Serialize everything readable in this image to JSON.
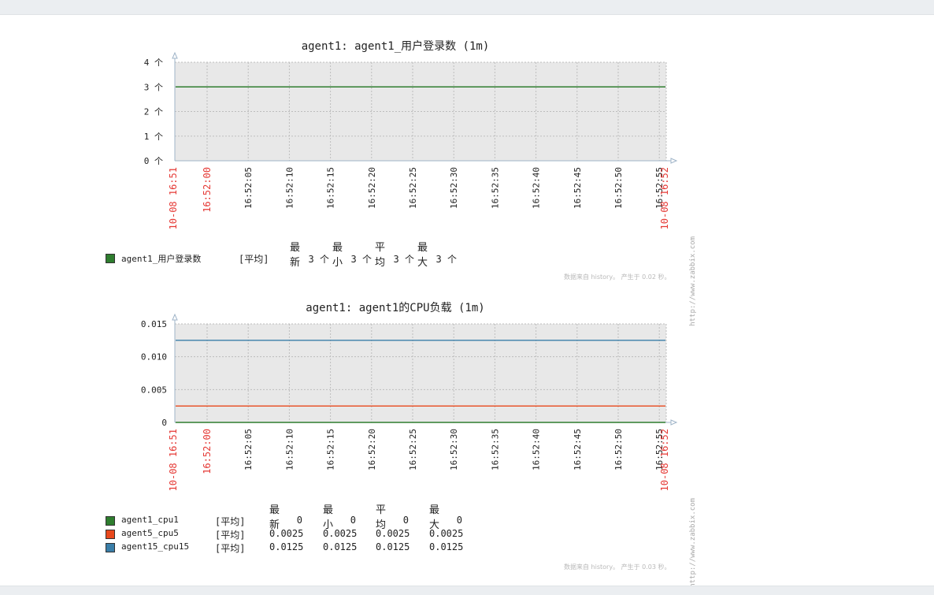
{
  "watermark": "http://www.zabbix.com",
  "chart_data": [
    {
      "type": "line",
      "title": "agent1: agent1_用户登录数 (1m)",
      "ylim": [
        0,
        4
      ],
      "y_ticks": [
        {
          "value": 0,
          "label": "0 个"
        },
        {
          "value": 1,
          "label": "1 个"
        },
        {
          "value": 2,
          "label": "2 个"
        },
        {
          "value": 3,
          "label": "3 个"
        },
        {
          "value": 4,
          "label": "4 个"
        }
      ],
      "x_labels": [
        {
          "label": "10-08 16:51",
          "red": true
        },
        {
          "label": "16:52:00",
          "red": true
        },
        {
          "label": "16:52:05",
          "red": false
        },
        {
          "label": "16:52:10",
          "red": false
        },
        {
          "label": "16:52:15",
          "red": false
        },
        {
          "label": "16:52:20",
          "red": false
        },
        {
          "label": "16:52:25",
          "red": false
        },
        {
          "label": "16:52:30",
          "red": false
        },
        {
          "label": "16:52:35",
          "red": false
        },
        {
          "label": "16:52:40",
          "red": false
        },
        {
          "label": "16:52:45",
          "red": false
        },
        {
          "label": "16:52:50",
          "red": false
        },
        {
          "label": "16:52:55",
          "red": false
        },
        {
          "label": "10-08 16:52",
          "red": true
        }
      ],
      "grid": true,
      "legend_headers": [
        "最新",
        "最小",
        "平均",
        "最大"
      ],
      "series": [
        {
          "name": "agent1_用户登录数",
          "func": "[平均]",
          "color": "#2e7d2e",
          "value": 3,
          "last": "3 个",
          "min": "3 个",
          "avg": "3 个",
          "max": "3 个"
        }
      ],
      "footer": "数据来自 history。 产生于 0.02 秒。"
    },
    {
      "type": "line",
      "title": "agent1: agent1的CPU负载 (1m)",
      "ylim": [
        0,
        0.015
      ],
      "y_ticks": [
        {
          "value": 0,
          "label": "0"
        },
        {
          "value": 0.005,
          "label": "0.005"
        },
        {
          "value": 0.01,
          "label": "0.010"
        },
        {
          "value": 0.015,
          "label": "0.015"
        }
      ],
      "x_labels": [
        {
          "label": "10-08 16:51",
          "red": true
        },
        {
          "label": "16:52:00",
          "red": true
        },
        {
          "label": "16:52:05",
          "red": false
        },
        {
          "label": "16:52:10",
          "red": false
        },
        {
          "label": "16:52:15",
          "red": false
        },
        {
          "label": "16:52:20",
          "red": false
        },
        {
          "label": "16:52:25",
          "red": false
        },
        {
          "label": "16:52:30",
          "red": false
        },
        {
          "label": "16:52:35",
          "red": false
        },
        {
          "label": "16:52:40",
          "red": false
        },
        {
          "label": "16:52:45",
          "red": false
        },
        {
          "label": "16:52:50",
          "red": false
        },
        {
          "label": "16:52:55",
          "red": false
        },
        {
          "label": "10-08 16:52",
          "red": true
        }
      ],
      "grid": true,
      "legend_headers": [
        "最新",
        "最小",
        "平均",
        "最大"
      ],
      "series": [
        {
          "name": "agent1_cpu1",
          "func": "[平均]",
          "color": "#2e7d2e",
          "value": 0,
          "last": "0",
          "min": "0",
          "avg": "0",
          "max": "0"
        },
        {
          "name": "agent5_cpu5",
          "func": "[平均]",
          "color": "#e8481c",
          "value": 0.0025,
          "last": "0.0025",
          "min": "0.0025",
          "avg": "0.0025",
          "max": "0.0025"
        },
        {
          "name": "agent15_cpu15",
          "func": "[平均]",
          "color": "#3a7ea8",
          "value": 0.0125,
          "last": "0.0125",
          "min": "0.0125",
          "avg": "0.0125",
          "max": "0.0125"
        }
      ],
      "footer": "数据来自 history。 产生于 0.03 秒。"
    }
  ]
}
